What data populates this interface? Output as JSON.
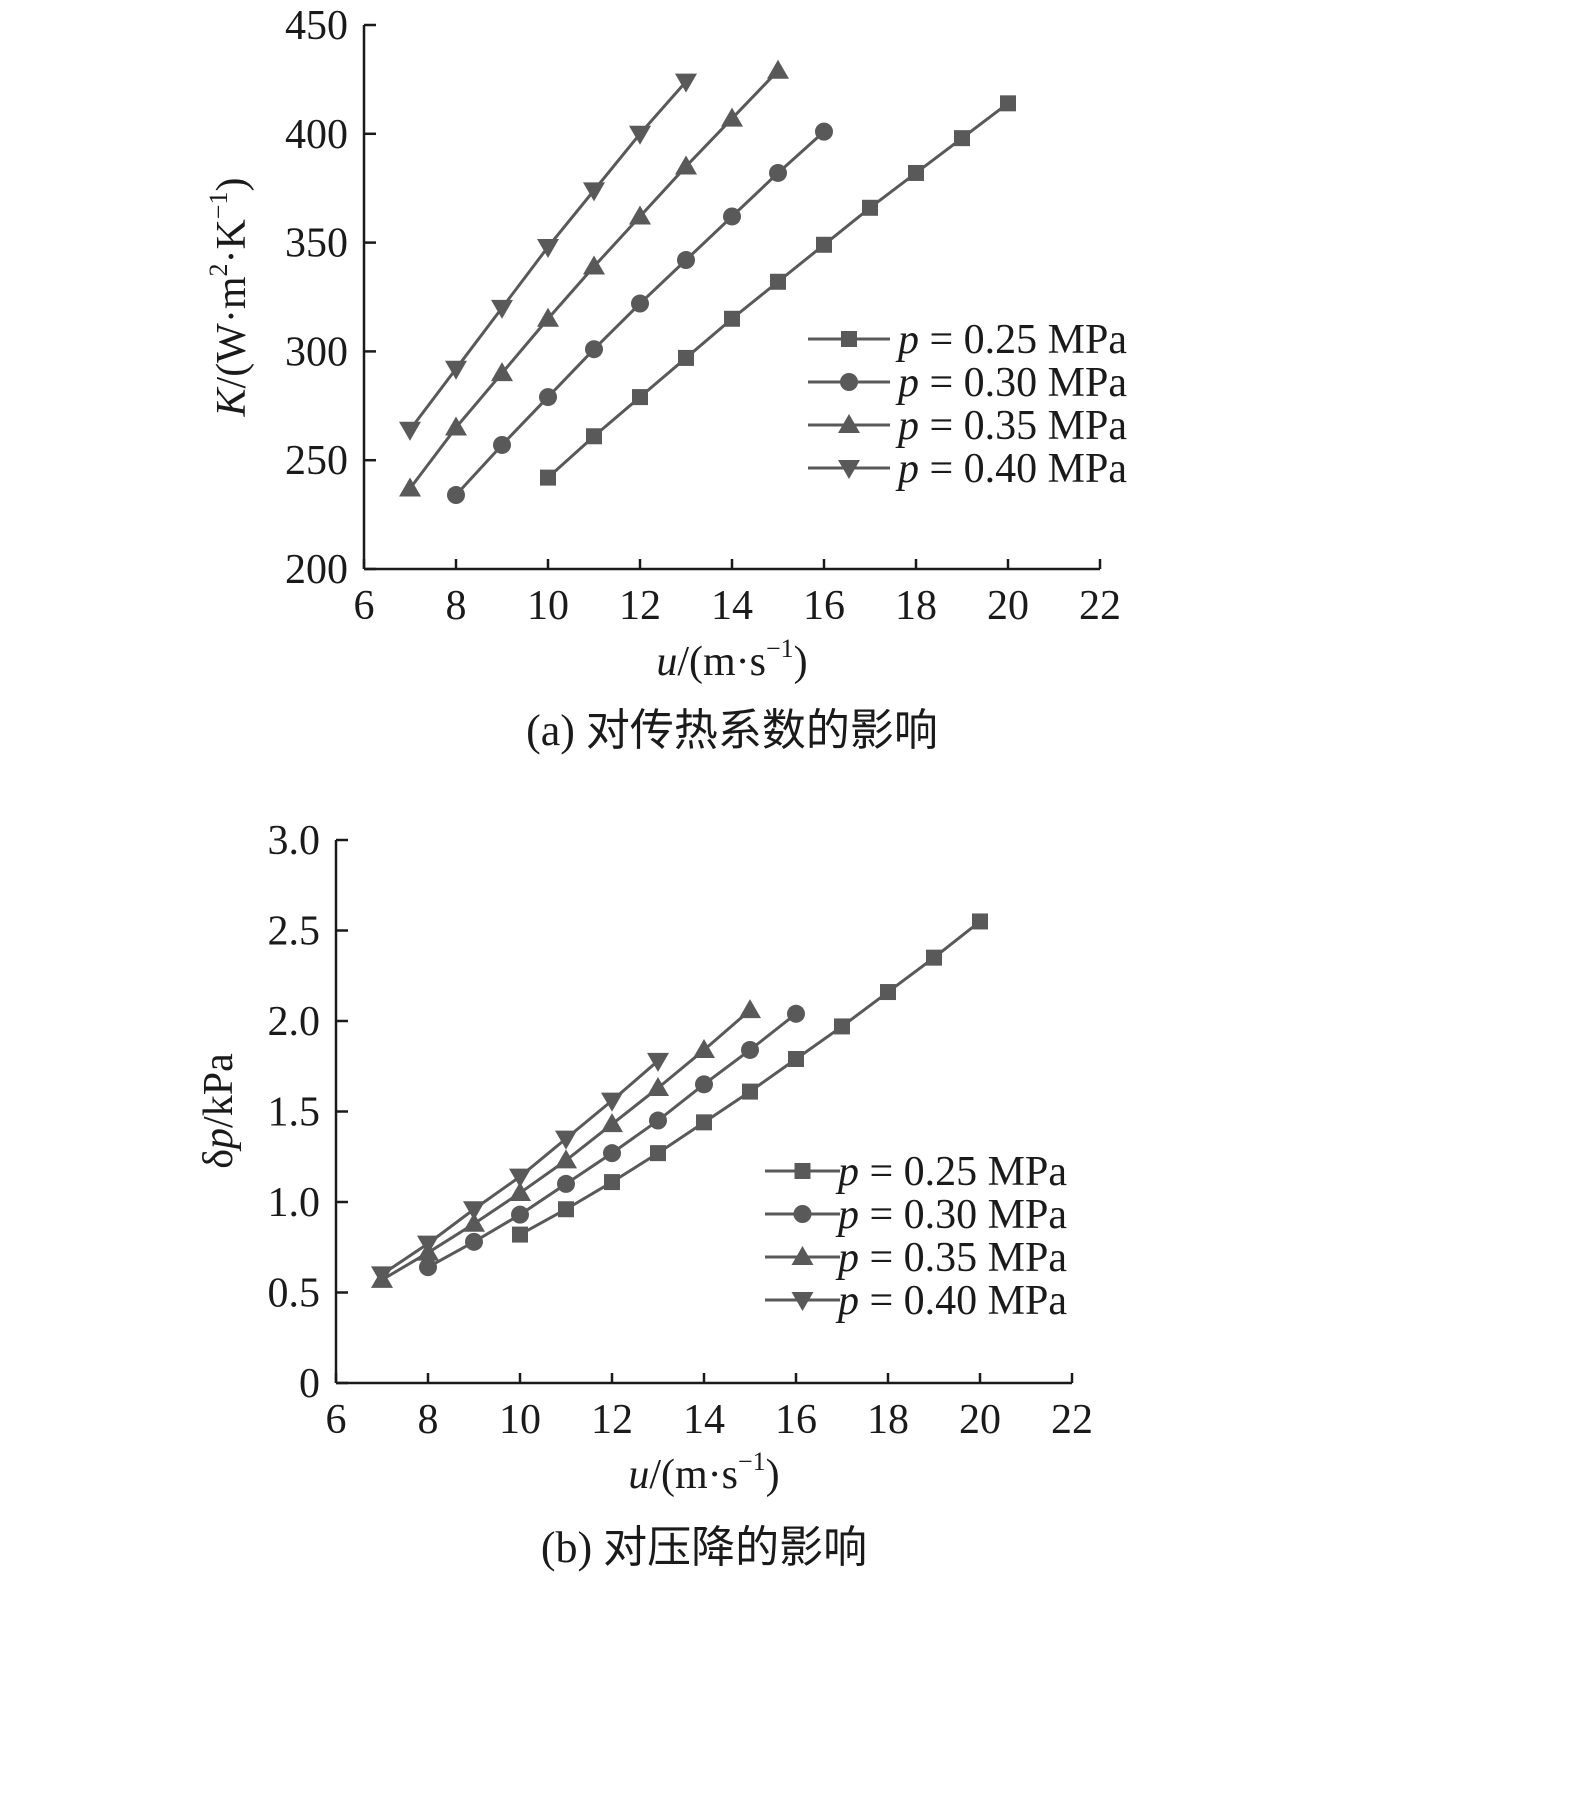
{
  "colors": {
    "series": "#595959",
    "axis": "#1a1a1a"
  },
  "chart_data": [
    {
      "type": "line",
      "caption": "(a) 对传热系数的影响",
      "xlabel": {
        "var": "u",
        "unit": "/(m·s",
        "exp": "−1",
        "close": ")"
      },
      "ylabel": {
        "var": "K",
        "unit": "/(W·m",
        "exp2": "2",
        "mid": "·K",
        "exp3": "−1",
        "close": ")"
      },
      "xlim": [
        6,
        22
      ],
      "ylim": [
        200,
        450
      ],
      "xticks": [
        "6",
        "8",
        "10",
        "12",
        "14",
        "16",
        "18",
        "20",
        "22"
      ],
      "yticks": [
        "200",
        "250",
        "300",
        "350",
        "400",
        "450"
      ],
      "legend_position": "right-middle",
      "series": [
        {
          "name": "p = 0.25 MPa",
          "legend_var": "p",
          "legend_rest": " = 0.25 MPa",
          "marker": "square",
          "x": [
            10,
            11,
            12,
            13,
            14,
            15,
            16,
            17,
            18,
            19,
            20
          ],
          "y": [
            242,
            261,
            279,
            297,
            315,
            332,
            349,
            366,
            382,
            398,
            414
          ]
        },
        {
          "name": "p = 0.30 MPa",
          "legend_var": "p",
          "legend_rest": " = 0.30 MPa",
          "marker": "circle",
          "x": [
            8,
            9,
            10,
            11,
            12,
            13,
            14,
            15,
            16
          ],
          "y": [
            234,
            257,
            279,
            301,
            322,
            342,
            362,
            382,
            401
          ]
        },
        {
          "name": "p = 0.35 MPa",
          "legend_var": "p",
          "legend_rest": " = 0.35 MPa",
          "marker": "triangle-up",
          "x": [
            7,
            8,
            9,
            10,
            11,
            12,
            13,
            14,
            15
          ],
          "y": [
            237,
            265,
            290,
            315,
            339,
            362,
            385,
            407,
            429
          ]
        },
        {
          "name": "p = 0.40 MPa",
          "legend_var": "p",
          "legend_rest": " = 0.40 MPa",
          "marker": "triangle-down",
          "x": [
            7,
            8,
            9,
            10,
            11,
            12,
            13
          ],
          "y": [
            264,
            292,
            320,
            348,
            374,
            400,
            424
          ]
        }
      ]
    },
    {
      "type": "line",
      "caption": "(b) 对压降的影响",
      "xlabel": {
        "var": "u",
        "unit": "/(m·s",
        "exp": "−1",
        "close": ")"
      },
      "ylabel": {
        "prefix": "δ",
        "var": "p",
        "unit": "/kPa"
      },
      "xlim": [
        6,
        22
      ],
      "ylim": [
        0,
        3.0
      ],
      "xticks": [
        "6",
        "8",
        "10",
        "12",
        "14",
        "16",
        "18",
        "20",
        "22"
      ],
      "yticks": [
        "0",
        "0.5",
        "1.0",
        "1.5",
        "2.0",
        "2.5",
        "3.0"
      ],
      "legend_position": "right-bottom",
      "series": [
        {
          "name": "p = 0.25 MPa",
          "legend_var": "p",
          "legend_rest": " = 0.25 MPa",
          "marker": "square",
          "x": [
            10,
            11,
            12,
            13,
            14,
            15,
            16,
            17,
            18,
            19,
            20
          ],
          "y": [
            0.82,
            0.96,
            1.11,
            1.27,
            1.44,
            1.61,
            1.79,
            1.97,
            2.16,
            2.35,
            2.55
          ]
        },
        {
          "name": "p = 0.30 MPa",
          "legend_var": "p",
          "legend_rest": " = 0.30 MPa",
          "marker": "circle",
          "x": [
            8,
            9,
            10,
            11,
            12,
            13,
            14,
            15,
            16
          ],
          "y": [
            0.64,
            0.78,
            0.93,
            1.1,
            1.27,
            1.45,
            1.65,
            1.84,
            2.04
          ]
        },
        {
          "name": "p = 0.35 MPa",
          "legend_var": "p",
          "legend_rest": " = 0.35 MPa",
          "marker": "triangle-up",
          "x": [
            7,
            8,
            9,
            10,
            11,
            12,
            13,
            14,
            15
          ],
          "y": [
            0.57,
            0.72,
            0.88,
            1.05,
            1.23,
            1.43,
            1.63,
            1.84,
            2.06
          ]
        },
        {
          "name": "p = 0.40 MPa",
          "legend_var": "p",
          "legend_rest": " = 0.40 MPa",
          "marker": "triangle-down",
          "x": [
            7,
            8,
            9,
            10,
            11,
            12,
            13
          ],
          "y": [
            0.6,
            0.77,
            0.96,
            1.14,
            1.35,
            1.56,
            1.78
          ]
        }
      ]
    }
  ]
}
